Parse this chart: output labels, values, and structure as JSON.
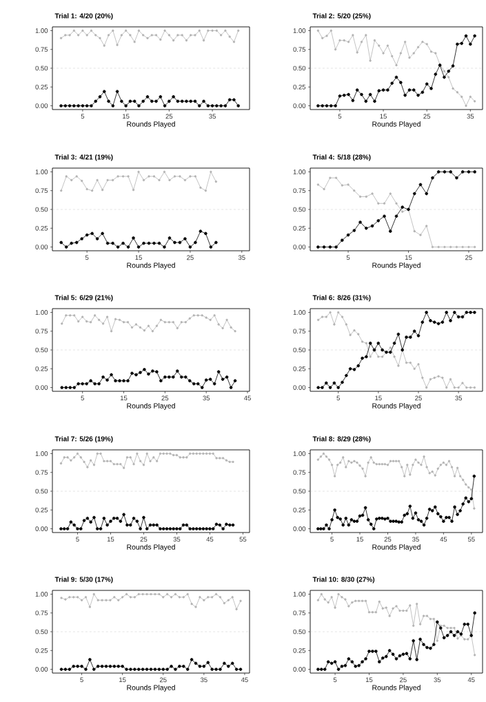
{
  "chart_data": [
    {
      "type": "line",
      "title": "Trial 1: 4/20 (20%)",
      "xlabel": "Rounds Played",
      "marker": "circle",
      "line_style": "solid",
      "x": [
        0,
        1,
        2,
        3,
        4,
        5,
        6,
        7,
        8,
        9,
        10,
        11,
        12,
        13,
        14,
        15,
        16,
        17,
        18,
        19,
        20,
        21,
        22,
        23,
        24,
        25,
        26,
        27,
        28,
        29,
        30,
        31,
        32,
        33,
        34,
        35,
        36,
        37,
        38,
        39,
        40,
        41
      ],
      "xlim": [
        -2,
        43.6
      ],
      "xticks": [
        5,
        15,
        25,
        35
      ],
      "ylim": [
        -0.05,
        1.05
      ],
      "yticks": [
        {
          "value": 0,
          "label": "0.00"
        },
        {
          "value": 0.25,
          "label": "0.25"
        },
        {
          "value": 0.5,
          "label": "0.50"
        },
        {
          "value": 0.75,
          "label": "0.75"
        },
        {
          "value": 1,
          "label": "1.00"
        }
      ],
      "ref_lines": [
        {
          "axis": "y",
          "value": 0.5,
          "line_style": "dashed",
          "color": "#c8c8c8"
        }
      ],
      "series": [
        {
          "color": "#b4b4b4",
          "values": [
            0.9,
            0.94,
            0.94,
            1,
            0.94,
            1,
            0.94,
            1,
            0.94,
            0.9,
            0.8,
            0.94,
            1,
            0.81,
            0.94,
            1,
            0.94,
            0.85,
            1,
            0.94,
            0.9,
            0.94,
            0.94,
            0.88,
            1,
            0.94,
            0.87,
            0.94,
            0.94,
            0.87,
            0.94,
            0.94,
            1,
            0.87,
            1,
            1,
            1,
            0.94,
            1,
            0.92,
            0.85,
            1
          ]
        },
        {
          "color": "#000000",
          "values": [
            0,
            0,
            0,
            0,
            0,
            0,
            0,
            0,
            0.06,
            0.12,
            0.19,
            0.06,
            0,
            0.19,
            0.06,
            0,
            0.06,
            0.06,
            0,
            0.06,
            0.12,
            0.06,
            0.06,
            0.12,
            0,
            0.06,
            0.12,
            0.06,
            0.06,
            0.06,
            0.06,
            0.06,
            0,
            0.06,
            0,
            0,
            0,
            0,
            0,
            0.08,
            0.08,
            0
          ]
        }
      ]
    },
    {
      "type": "line",
      "title": "Trial 2: 5/20 (25%)",
      "xlabel": "Rounds Played",
      "marker": "circle",
      "line_style": "solid",
      "x": [
        0,
        1,
        2,
        3,
        4,
        5,
        6,
        7,
        8,
        9,
        10,
        11,
        12,
        13,
        14,
        15,
        16,
        17,
        18,
        19,
        20,
        21,
        22,
        23,
        24,
        25,
        26,
        27,
        28,
        29,
        30,
        31,
        32,
        33,
        34,
        35,
        36
      ],
      "xlim": [
        -1.8,
        37.8
      ],
      "xticks": [
        5,
        15,
        25,
        35
      ],
      "ylim": [
        -0.05,
        1.05
      ],
      "yticks": [
        {
          "value": 0,
          "label": "0.00"
        },
        {
          "value": 0.25,
          "label": "0.25"
        },
        {
          "value": 0.5,
          "label": "0.50"
        },
        {
          "value": 0.75,
          "label": "0.75"
        },
        {
          "value": 1,
          "label": "1.00"
        }
      ],
      "ref_lines": [
        {
          "axis": "y",
          "value": 0.5,
          "line_style": "dashed",
          "color": "#c8c8c8"
        }
      ],
      "series": [
        {
          "color": "#b4b4b4",
          "values": [
            1,
            0.9,
            0.93,
            1,
            0.75,
            0.87,
            0.87,
            0.85,
            0.94,
            0.71,
            0.85,
            0.94,
            0.6,
            0.87,
            0.8,
            0.7,
            0.8,
            0.66,
            0.54,
            0.7,
            0.85,
            0.64,
            0.7,
            0.78,
            0.85,
            0.82,
            0.72,
            0.7,
            0.55,
            0.46,
            0.38,
            0.23,
            0.18,
            0.12,
            0,
            0.12,
            0.06
          ]
        },
        {
          "color": "#000000",
          "values": [
            0,
            0,
            0,
            0,
            0,
            0.13,
            0.14,
            0.15,
            0.07,
            0.21,
            0.15,
            0.06,
            0.15,
            0.06,
            0.2,
            0.21,
            0.21,
            0.3,
            0.38,
            0.31,
            0.14,
            0.21,
            0.21,
            0.14,
            0.18,
            0.29,
            0.23,
            0.42,
            0.54,
            0.38,
            0.46,
            0.53,
            0.82,
            0.83,
            0.93,
            0.82,
            0.93
          ]
        }
      ]
    },
    {
      "type": "line",
      "title": "Trial 3: 4/21 (19%)",
      "xlabel": "Rounds Played",
      "marker": "circle",
      "line_style": "solid",
      "x": [
        0,
        1,
        2,
        3,
        4,
        5,
        6,
        7,
        8,
        9,
        10,
        11,
        12,
        13,
        14,
        15,
        16,
        17,
        18,
        19,
        20,
        21,
        22,
        23,
        24,
        25,
        26,
        27,
        28,
        29,
        30
      ],
      "xlim": [
        -1.7,
        36.5
      ],
      "xticks": [
        5,
        15,
        25,
        35
      ],
      "ylim": [
        -0.05,
        1.05
      ],
      "yticks": [
        {
          "value": 0,
          "label": "0.00"
        },
        {
          "value": 0.25,
          "label": "0.25"
        },
        {
          "value": 0.5,
          "label": "0.50"
        },
        {
          "value": 0.75,
          "label": "0.75"
        },
        {
          "value": 1,
          "label": "1.00"
        }
      ],
      "ref_lines": [
        {
          "axis": "y",
          "value": 0.5,
          "line_style": "dashed",
          "color": "#c8c8c8"
        }
      ],
      "series": [
        {
          "color": "#b4b4b4",
          "values": [
            0.75,
            0.94,
            0.89,
            0.94,
            0.88,
            0.77,
            0.75,
            0.89,
            0.76,
            0.89,
            0.89,
            0.94,
            0.94,
            0.94,
            0.76,
            1,
            0.89,
            0.94,
            0.94,
            0.89,
            1,
            0.89,
            0.94,
            0.94,
            0.89,
            0.94,
            0.94,
            0.79,
            0.75,
            1,
            0.87
          ]
        },
        {
          "color": "#000000",
          "values": [
            0.06,
            0,
            0.05,
            0.06,
            0.11,
            0.16,
            0.18,
            0.11,
            0.18,
            0.05,
            0.05,
            0,
            0.05,
            0,
            0.12,
            0,
            0.05,
            0.05,
            0.05,
            0.05,
            0,
            0.12,
            0.06,
            0.06,
            0.11,
            0,
            0.06,
            0.21,
            0.18,
            0,
            0.06
          ]
        }
      ]
    },
    {
      "type": "line",
      "title": "Trial 4: 5/18 (28%)",
      "xlabel": "Rounds Played",
      "marker": "circle",
      "line_style": "solid",
      "x": [
        0,
        1,
        2,
        3,
        4,
        5,
        6,
        7,
        8,
        9,
        10,
        11,
        12,
        13,
        14,
        15,
        16,
        17,
        18,
        19,
        20,
        21,
        22,
        23,
        24,
        25,
        26
      ],
      "xlim": [
        -1.3,
        27.3
      ],
      "xticks": [
        5,
        15,
        25
      ],
      "ylim": [
        -0.05,
        1.05
      ],
      "yticks": [
        {
          "value": 0,
          "label": "0.00"
        },
        {
          "value": 0.25,
          "label": "0.25"
        },
        {
          "value": 0.5,
          "label": "0.50"
        },
        {
          "value": 0.75,
          "label": "0.75"
        },
        {
          "value": 1,
          "label": "1.00"
        }
      ],
      "ref_lines": [
        {
          "axis": "y",
          "value": 0.5,
          "line_style": "dashed",
          "color": "#c8c8c8"
        }
      ],
      "series": [
        {
          "color": "#b4b4b4",
          "values": [
            0.83,
            0.77,
            0.92,
            0.92,
            0.82,
            0.83,
            0.75,
            0.67,
            0.67,
            0.71,
            0.58,
            0.58,
            0.71,
            0.58,
            0.47,
            0.5,
            0.21,
            0.16,
            0.28,
            0,
            0,
            0,
            0,
            0,
            0,
            0,
            0
          ]
        },
        {
          "color": "#000000",
          "values": [
            0,
            0,
            0,
            0,
            0.09,
            0.16,
            0.22,
            0.33,
            0.25,
            0.28,
            0.35,
            0.41,
            0.21,
            0.41,
            0.53,
            0.5,
            0.71,
            0.83,
            0.71,
            0.92,
            1,
            1,
            1,
            0.92,
            1,
            1,
            1
          ]
        }
      ]
    },
    {
      "type": "line",
      "title": "Trial 5: 6/29 (21%)",
      "xlabel": "Rounds Played",
      "marker": "circle",
      "line_style": "solid",
      "x": [
        0,
        1,
        2,
        3,
        4,
        5,
        6,
        7,
        8,
        9,
        10,
        11,
        12,
        13,
        14,
        15,
        16,
        17,
        18,
        19,
        20,
        21,
        22,
        23,
        24,
        25,
        26,
        27,
        28,
        29,
        30,
        31,
        32,
        33,
        34,
        35,
        36,
        37,
        38,
        39,
        40,
        41,
        42
      ],
      "xlim": [
        -2.3,
        45.5
      ],
      "xticks": [
        5,
        15,
        25,
        35,
        45
      ],
      "ylim": [
        -0.05,
        1.05
      ],
      "yticks": [
        {
          "value": 0,
          "label": "0.00"
        },
        {
          "value": 0.25,
          "label": "0.25"
        },
        {
          "value": 0.5,
          "label": "0.50"
        },
        {
          "value": 0.75,
          "label": "0.75"
        },
        {
          "value": 1,
          "label": "1.00"
        }
      ],
      "ref_lines": [
        {
          "axis": "y",
          "value": 0.5,
          "line_style": "dashed",
          "color": "#c8c8c8"
        }
      ],
      "series": [
        {
          "color": "#b4b4b4",
          "values": [
            0.85,
            0.96,
            0.96,
            0.96,
            0.88,
            0.94,
            0.88,
            0.87,
            0.96,
            0.9,
            0.85,
            0.94,
            0.75,
            0.91,
            0.9,
            0.87,
            0.87,
            0.8,
            0.84,
            0.8,
            0.76,
            0.82,
            0.75,
            0.82,
            0.9,
            0.87,
            0.87,
            0.87,
            0.79,
            0.87,
            0.87,
            0.92,
            0.96,
            0.96,
            0.96,
            0.93,
            0.9,
            0.96,
            0.84,
            0.79,
            0.9,
            0.8,
            0.75
          ]
        },
        {
          "color": "#000000",
          "values": [
            0,
            0,
            0,
            0,
            0.05,
            0.05,
            0.05,
            0.09,
            0.05,
            0.05,
            0.14,
            0.1,
            0.17,
            0.09,
            0.09,
            0.09,
            0.09,
            0.19,
            0.17,
            0.2,
            0.24,
            0.18,
            0.22,
            0.21,
            0.09,
            0.14,
            0.14,
            0.14,
            0.22,
            0.14,
            0.14,
            0.09,
            0.05,
            0.05,
            0,
            0.1,
            0.11,
            0.05,
            0.21,
            0.11,
            0.14,
            0,
            0.09
          ]
        }
      ]
    },
    {
      "type": "line",
      "title": "Trial 6: 8/26 (31%)",
      "xlabel": "Rounds Played",
      "marker": "circle",
      "line_style": "solid",
      "x": [
        0,
        1,
        2,
        3,
        4,
        5,
        6,
        7,
        8,
        9,
        10,
        11,
        12,
        13,
        14,
        15,
        16,
        17,
        18,
        19,
        20,
        21,
        22,
        23,
        24,
        25,
        26,
        27,
        28,
        29,
        30,
        31,
        32,
        33,
        34,
        35,
        36,
        37,
        38,
        39
      ],
      "xlim": [
        -2,
        41
      ],
      "xticks": [
        5,
        15,
        25,
        35
      ],
      "ylim": [
        -0.05,
        1.05
      ],
      "yticks": [
        {
          "value": 0,
          "label": "0.00"
        },
        {
          "value": 0.25,
          "label": "0.25"
        },
        {
          "value": 0.5,
          "label": "0.50"
        },
        {
          "value": 0.75,
          "label": "0.75"
        },
        {
          "value": 1,
          "label": "1.00"
        }
      ],
      "ref_lines": [
        {
          "axis": "y",
          "value": 0.5,
          "line_style": "dashed",
          "color": "#c8c8c8"
        }
      ],
      "series": [
        {
          "color": "#b4b4b4",
          "values": [
            0.9,
            0.94,
            0.94,
            1,
            0.84,
            1,
            0.94,
            0.84,
            0.7,
            0.76,
            0.71,
            0.61,
            0.59,
            0.41,
            0.5,
            0.41,
            0.41,
            0.47,
            0.53,
            0.41,
            0.29,
            0.5,
            0.33,
            0.33,
            0.25,
            0.31,
            0.13,
            0,
            0.11,
            0.13,
            0.15,
            0.13,
            0,
            0.11,
            0,
            0,
            0.06,
            0,
            0,
            0
          ]
        },
        {
          "color": "#000000",
          "values": [
            0,
            0,
            0.06,
            0,
            0.06,
            0,
            0.07,
            0.16,
            0.25,
            0.24,
            0.29,
            0.39,
            0.41,
            0.59,
            0.5,
            0.59,
            0.5,
            0.47,
            0.47,
            0.59,
            0.71,
            0.5,
            0.67,
            0.67,
            0.75,
            0.69,
            0.87,
            1,
            0.89,
            0.87,
            0.85,
            0.87,
            1,
            0.89,
            1,
            0.94,
            0.94,
            1,
            1,
            1
          ]
        }
      ]
    },
    {
      "type": "line",
      "title": "Trial 7: 5/26 (19%)",
      "xlabel": "Rounds Played",
      "marker": "circle",
      "line_style": "solid",
      "x": [
        0,
        1,
        2,
        3,
        4,
        5,
        6,
        7,
        8,
        9,
        10,
        11,
        12,
        13,
        14,
        15,
        16,
        17,
        18,
        19,
        20,
        21,
        22,
        23,
        24,
        25,
        26,
        27,
        28,
        29,
        30,
        31,
        32,
        33,
        34,
        35,
        36,
        37,
        38,
        39,
        40,
        41,
        42,
        43,
        44,
        45,
        46,
        47,
        48,
        49,
        50,
        51,
        52
      ],
      "xlim": [
        -2.6,
        57
      ],
      "xticks": [
        5,
        15,
        25,
        35,
        45,
        55
      ],
      "ylim": [
        -0.05,
        1.05
      ],
      "yticks": [
        {
          "value": 0,
          "label": "0.00"
        },
        {
          "value": 0.25,
          "label": "0.25"
        },
        {
          "value": 0.5,
          "label": "0.50"
        },
        {
          "value": 0.75,
          "label": "0.75"
        },
        {
          "value": 1,
          "label": "1.00"
        }
      ],
      "ref_lines": [
        {
          "axis": "y",
          "value": 0.5,
          "line_style": "dashed",
          "color": "#c8c8c8"
        }
      ],
      "series": [
        {
          "color": "#b4b4b4",
          "values": [
            0.87,
            0.95,
            0.95,
            0.91,
            0.95,
            1,
            0.95,
            0.89,
            0.82,
            0.91,
            0.85,
            1,
            1,
            0.9,
            0.9,
            0.9,
            0.86,
            0.86,
            0.86,
            0.81,
            0.95,
            0.95,
            0.86,
            1,
            0.9,
            0.85,
            1,
            0.9,
            0.95,
            0.9,
            1,
            1,
            1,
            1,
            0.98,
            0.98,
            0.95,
            0.95,
            0.95,
            1,
            1,
            1,
            1,
            1,
            1,
            1,
            1,
            0.94,
            0.94,
            0.94,
            0.91,
            0.89,
            0.89
          ]
        },
        {
          "color": "#000000",
          "values": [
            0,
            0,
            0,
            0.09,
            0.05,
            0,
            0,
            0.11,
            0.14,
            0.09,
            0.15,
            0,
            0,
            0.14,
            0.05,
            0.1,
            0.14,
            0.14,
            0.1,
            0.19,
            0.05,
            0.05,
            0.14,
            0.1,
            0,
            0.15,
            0,
            0.05,
            0.05,
            0.05,
            0,
            0,
            0,
            0,
            0,
            0,
            0,
            0.05,
            0.05,
            0,
            0,
            0,
            0,
            0,
            0,
            0,
            0,
            0.06,
            0.05,
            0,
            0.06,
            0.05,
            0.05
          ]
        }
      ]
    },
    {
      "type": "line",
      "title": "Trial 8: 8/29 (28%)",
      "xlabel": "Rounds Played",
      "marker": "circle",
      "line_style": "solid",
      "x": [
        0,
        1,
        2,
        3,
        4,
        5,
        6,
        7,
        8,
        9,
        10,
        11,
        12,
        13,
        14,
        15,
        16,
        17,
        18,
        19,
        20,
        21,
        22,
        23,
        24,
        25,
        26,
        27,
        28,
        29,
        30,
        31,
        32,
        33,
        34,
        35,
        36,
        37,
        38,
        39,
        40,
        41,
        42,
        43,
        44,
        45,
        46,
        47,
        48,
        49,
        50,
        51,
        52,
        53,
        54,
        55,
        56
      ],
      "xlim": [
        -2.8,
        59
      ],
      "xticks": [
        5,
        15,
        25,
        35,
        45,
        55
      ],
      "ylim": [
        -0.05,
        1.05
      ],
      "yticks": [
        {
          "value": 0,
          "label": "0.00"
        },
        {
          "value": 0.25,
          "label": "0.25"
        },
        {
          "value": 0.5,
          "label": "0.50"
        },
        {
          "value": 0.75,
          "label": "0.75"
        },
        {
          "value": 1,
          "label": "1.00"
        }
      ],
      "ref_lines": [
        {
          "axis": "y",
          "value": 0.5,
          "line_style": "dashed",
          "color": "#c8c8c8"
        }
      ],
      "series": [
        {
          "color": "#b4b4b4",
          "values": [
            0.92,
            0.96,
            1,
            0.96,
            0.92,
            0.85,
            0.7,
            0.85,
            0.88,
            0.95,
            0.82,
            0.9,
            0.88,
            0.9,
            0.88,
            0.84,
            0.8,
            0.7,
            0.88,
            0.95,
            0.88,
            0.86,
            0.86,
            0.86,
            0.86,
            0.85,
            0.9,
            0.9,
            0.9,
            0.9,
            0.82,
            0.7,
            0.85,
            0.72,
            0.85,
            0.92,
            0.88,
            0.85,
            0.96,
            0.82,
            0.74,
            0.76,
            0.71,
            0.8,
            0.85,
            0.88,
            0.85,
            0.9,
            0.82,
            0.7,
            0.81,
            0.7,
            0.65,
            0.59,
            0.55,
            0.52,
            0.27
          ]
        },
        {
          "color": "#000000",
          "values": [
            0,
            0,
            0,
            0.05,
            0,
            0.12,
            0.25,
            0.15,
            0.13,
            0.05,
            0.14,
            0.05,
            0.12,
            0.1,
            0.1,
            0.17,
            0.18,
            0.28,
            0.12,
            0.06,
            0,
            0.13,
            0.14,
            0.14,
            0.13,
            0.14,
            0.1,
            0.1,
            0.1,
            0.09,
            0.09,
            0.18,
            0.2,
            0.3,
            0.14,
            0.21,
            0.12,
            0.1,
            0.05,
            0.14,
            0.26,
            0.24,
            0.29,
            0.2,
            0.16,
            0.1,
            0.15,
            0.15,
            0.1,
            0.29,
            0.19,
            0.24,
            0.33,
            0.41,
            0.36,
            0.4,
            0.7
          ]
        }
      ]
    },
    {
      "type": "line",
      "title": "Trial 9: 5/30 (17%)",
      "xlabel": "Rounds Played",
      "marker": "circle",
      "line_style": "solid",
      "x": [
        0,
        1,
        2,
        3,
        4,
        5,
        6,
        7,
        8,
        9,
        10,
        11,
        12,
        13,
        14,
        15,
        16,
        17,
        18,
        19,
        20,
        21,
        22,
        23,
        24,
        25,
        26,
        27,
        28,
        29,
        30,
        31,
        32,
        33,
        34,
        35,
        36,
        37,
        38,
        39,
        40,
        41,
        42,
        43,
        44
      ],
      "xlim": [
        -2.2,
        46.2
      ],
      "xticks": [
        5,
        15,
        25,
        35,
        45
      ],
      "ylim": [
        -0.05,
        1.05
      ],
      "yticks": [
        {
          "value": 0,
          "label": "0.00"
        },
        {
          "value": 0.25,
          "label": "0.25"
        },
        {
          "value": 0.5,
          "label": "0.50"
        },
        {
          "value": 0.75,
          "label": "0.75"
        },
        {
          "value": 1,
          "label": "1.00"
        }
      ],
      "ref_lines": [
        {
          "axis": "y",
          "value": 0.5,
          "line_style": "dashed",
          "color": "#c8c8c8"
        }
      ],
      "series": [
        {
          "color": "#b4b4b4",
          "values": [
            0.95,
            0.93,
            0.96,
            0.96,
            0.96,
            0.92,
            0.96,
            0.83,
            1,
            0.92,
            0.92,
            0.92,
            0.92,
            0.96,
            0.92,
            0.96,
            1,
            0.96,
            0.96,
            1,
            1,
            1,
            1,
            1,
            1,
            0.96,
            1,
            0.96,
            1,
            0.96,
            0.96,
            1,
            0.87,
            0.83,
            0.96,
            0.92,
            0.96,
            0.96,
            1,
            0.96,
            0.88,
            0.92,
            0.96,
            0.8,
            0.91
          ]
        },
        {
          "color": "#000000",
          "values": [
            0,
            0,
            0,
            0.04,
            0.04,
            0.04,
            0,
            0.13,
            0,
            0.04,
            0.04,
            0.04,
            0.04,
            0.04,
            0.04,
            0.04,
            0,
            0,
            0,
            0,
            0,
            0,
            0,
            0,
            0,
            0,
            0,
            0.04,
            0,
            0.04,
            0.04,
            0,
            0.13,
            0.08,
            0.04,
            0.04,
            0.09,
            0,
            0,
            0,
            0.08,
            0.04,
            0.08,
            0,
            0
          ]
        }
      ]
    },
    {
      "type": "line",
      "title": "Trial 10: 8/30 (27%)",
      "xlabel": "Rounds Played",
      "marker": "circle",
      "line_style": "solid",
      "x": [
        0,
        1,
        2,
        3,
        4,
        5,
        6,
        7,
        8,
        9,
        10,
        11,
        12,
        13,
        14,
        15,
        16,
        17,
        18,
        19,
        20,
        21,
        22,
        23,
        24,
        25,
        26,
        27,
        28,
        29,
        30,
        31,
        32,
        33,
        34,
        35,
        36,
        37,
        38,
        39,
        40,
        41,
        42,
        43,
        44,
        45,
        46
      ],
      "xlim": [
        -2.3,
        48.3
      ],
      "xticks": [
        5,
        15,
        25,
        35,
        45
      ],
      "ylim": [
        -0.05,
        1.05
      ],
      "yticks": [
        {
          "value": 0,
          "label": "0.00"
        },
        {
          "value": 0.25,
          "label": "0.25"
        },
        {
          "value": 0.5,
          "label": "0.50"
        },
        {
          "value": 0.75,
          "label": "0.75"
        },
        {
          "value": 1,
          "label": "1.00"
        }
      ],
      "ref_lines": [
        {
          "axis": "y",
          "value": 0.5,
          "line_style": "dashed",
          "color": "#c8c8c8"
        }
      ],
      "series": [
        {
          "color": "#b4b4b4",
          "values": [
            0.92,
            1,
            0.93,
            0.89,
            0.96,
            0.82,
            1,
            0.96,
            0.93,
            0.84,
            0.89,
            0.91,
            0.91,
            0.91,
            0.91,
            0.76,
            0.76,
            0.76,
            0.9,
            0.81,
            0.82,
            0.71,
            0.81,
            0.84,
            0.78,
            0.78,
            0.78,
            0.85,
            0.58,
            0.87,
            0.6,
            0.71,
            0.71,
            0.67,
            0.67,
            0.38,
            0.58,
            0.58,
            0.55,
            0.55,
            0.55,
            0.41,
            0.45,
            0.4,
            0.4,
            0.45,
            0.19
          ]
        },
        {
          "color": "#000000",
          "values": [
            0,
            0,
            0,
            0.1,
            0.08,
            0.1,
            0,
            0.04,
            0.05,
            0.14,
            0.1,
            0.04,
            0.05,
            0.1,
            0.14,
            0.24,
            0.24,
            0.24,
            0.1,
            0.15,
            0.17,
            0.25,
            0.2,
            0.14,
            0.18,
            0.2,
            0.21,
            0.14,
            0.38,
            0.13,
            0.4,
            0.33,
            0.29,
            0.28,
            0.33,
            0.63,
            0.55,
            0.42,
            0.45,
            0.5,
            0.45,
            0.5,
            0.47,
            0.6,
            0.6,
            0.45,
            0.75
          ]
        }
      ]
    }
  ]
}
